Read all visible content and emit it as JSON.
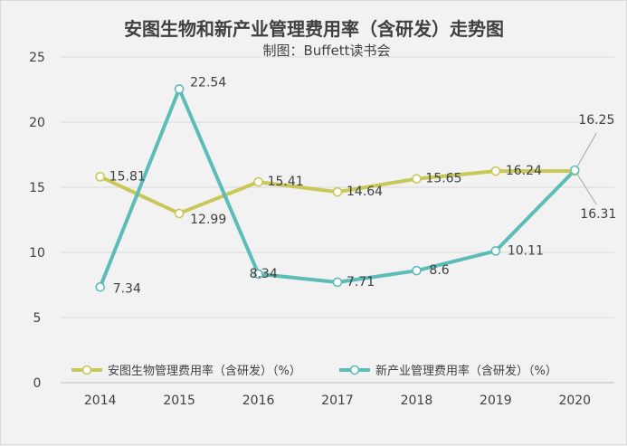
{
  "chart_data": {
    "type": "line",
    "title": "安图生物和新产业管理费用率（含研发）走势图",
    "subtitle": "制图：Buffett读书会",
    "categories": [
      "2014",
      "2015",
      "2016",
      "2017",
      "2018",
      "2019",
      "2020"
    ],
    "ylim": [
      0,
      25
    ],
    "yticks": [
      "0",
      "5",
      "10",
      "15",
      "20",
      "25"
    ],
    "grid": true,
    "legend_position": "bottom",
    "series": [
      {
        "name": "安图生物管理费用率（含研发）（%）",
        "color": "#c9c857",
        "values": [
          15.81,
          12.99,
          15.41,
          14.64,
          15.65,
          16.24,
          16.25
        ],
        "labels": [
          "15.81",
          "12.99",
          "15.41",
          "14.64",
          "15.65",
          "16.24",
          "16.25"
        ]
      },
      {
        "name": "新产业管理费用率（含研发）（%）",
        "color": "#5cbcb8",
        "values": [
          7.34,
          22.54,
          8.34,
          7.71,
          8.6,
          10.11,
          16.31
        ],
        "labels": [
          "7.34",
          "22.54",
          "8.34",
          "7.71",
          "8.6",
          "10.11",
          "16.31"
        ]
      }
    ]
  }
}
